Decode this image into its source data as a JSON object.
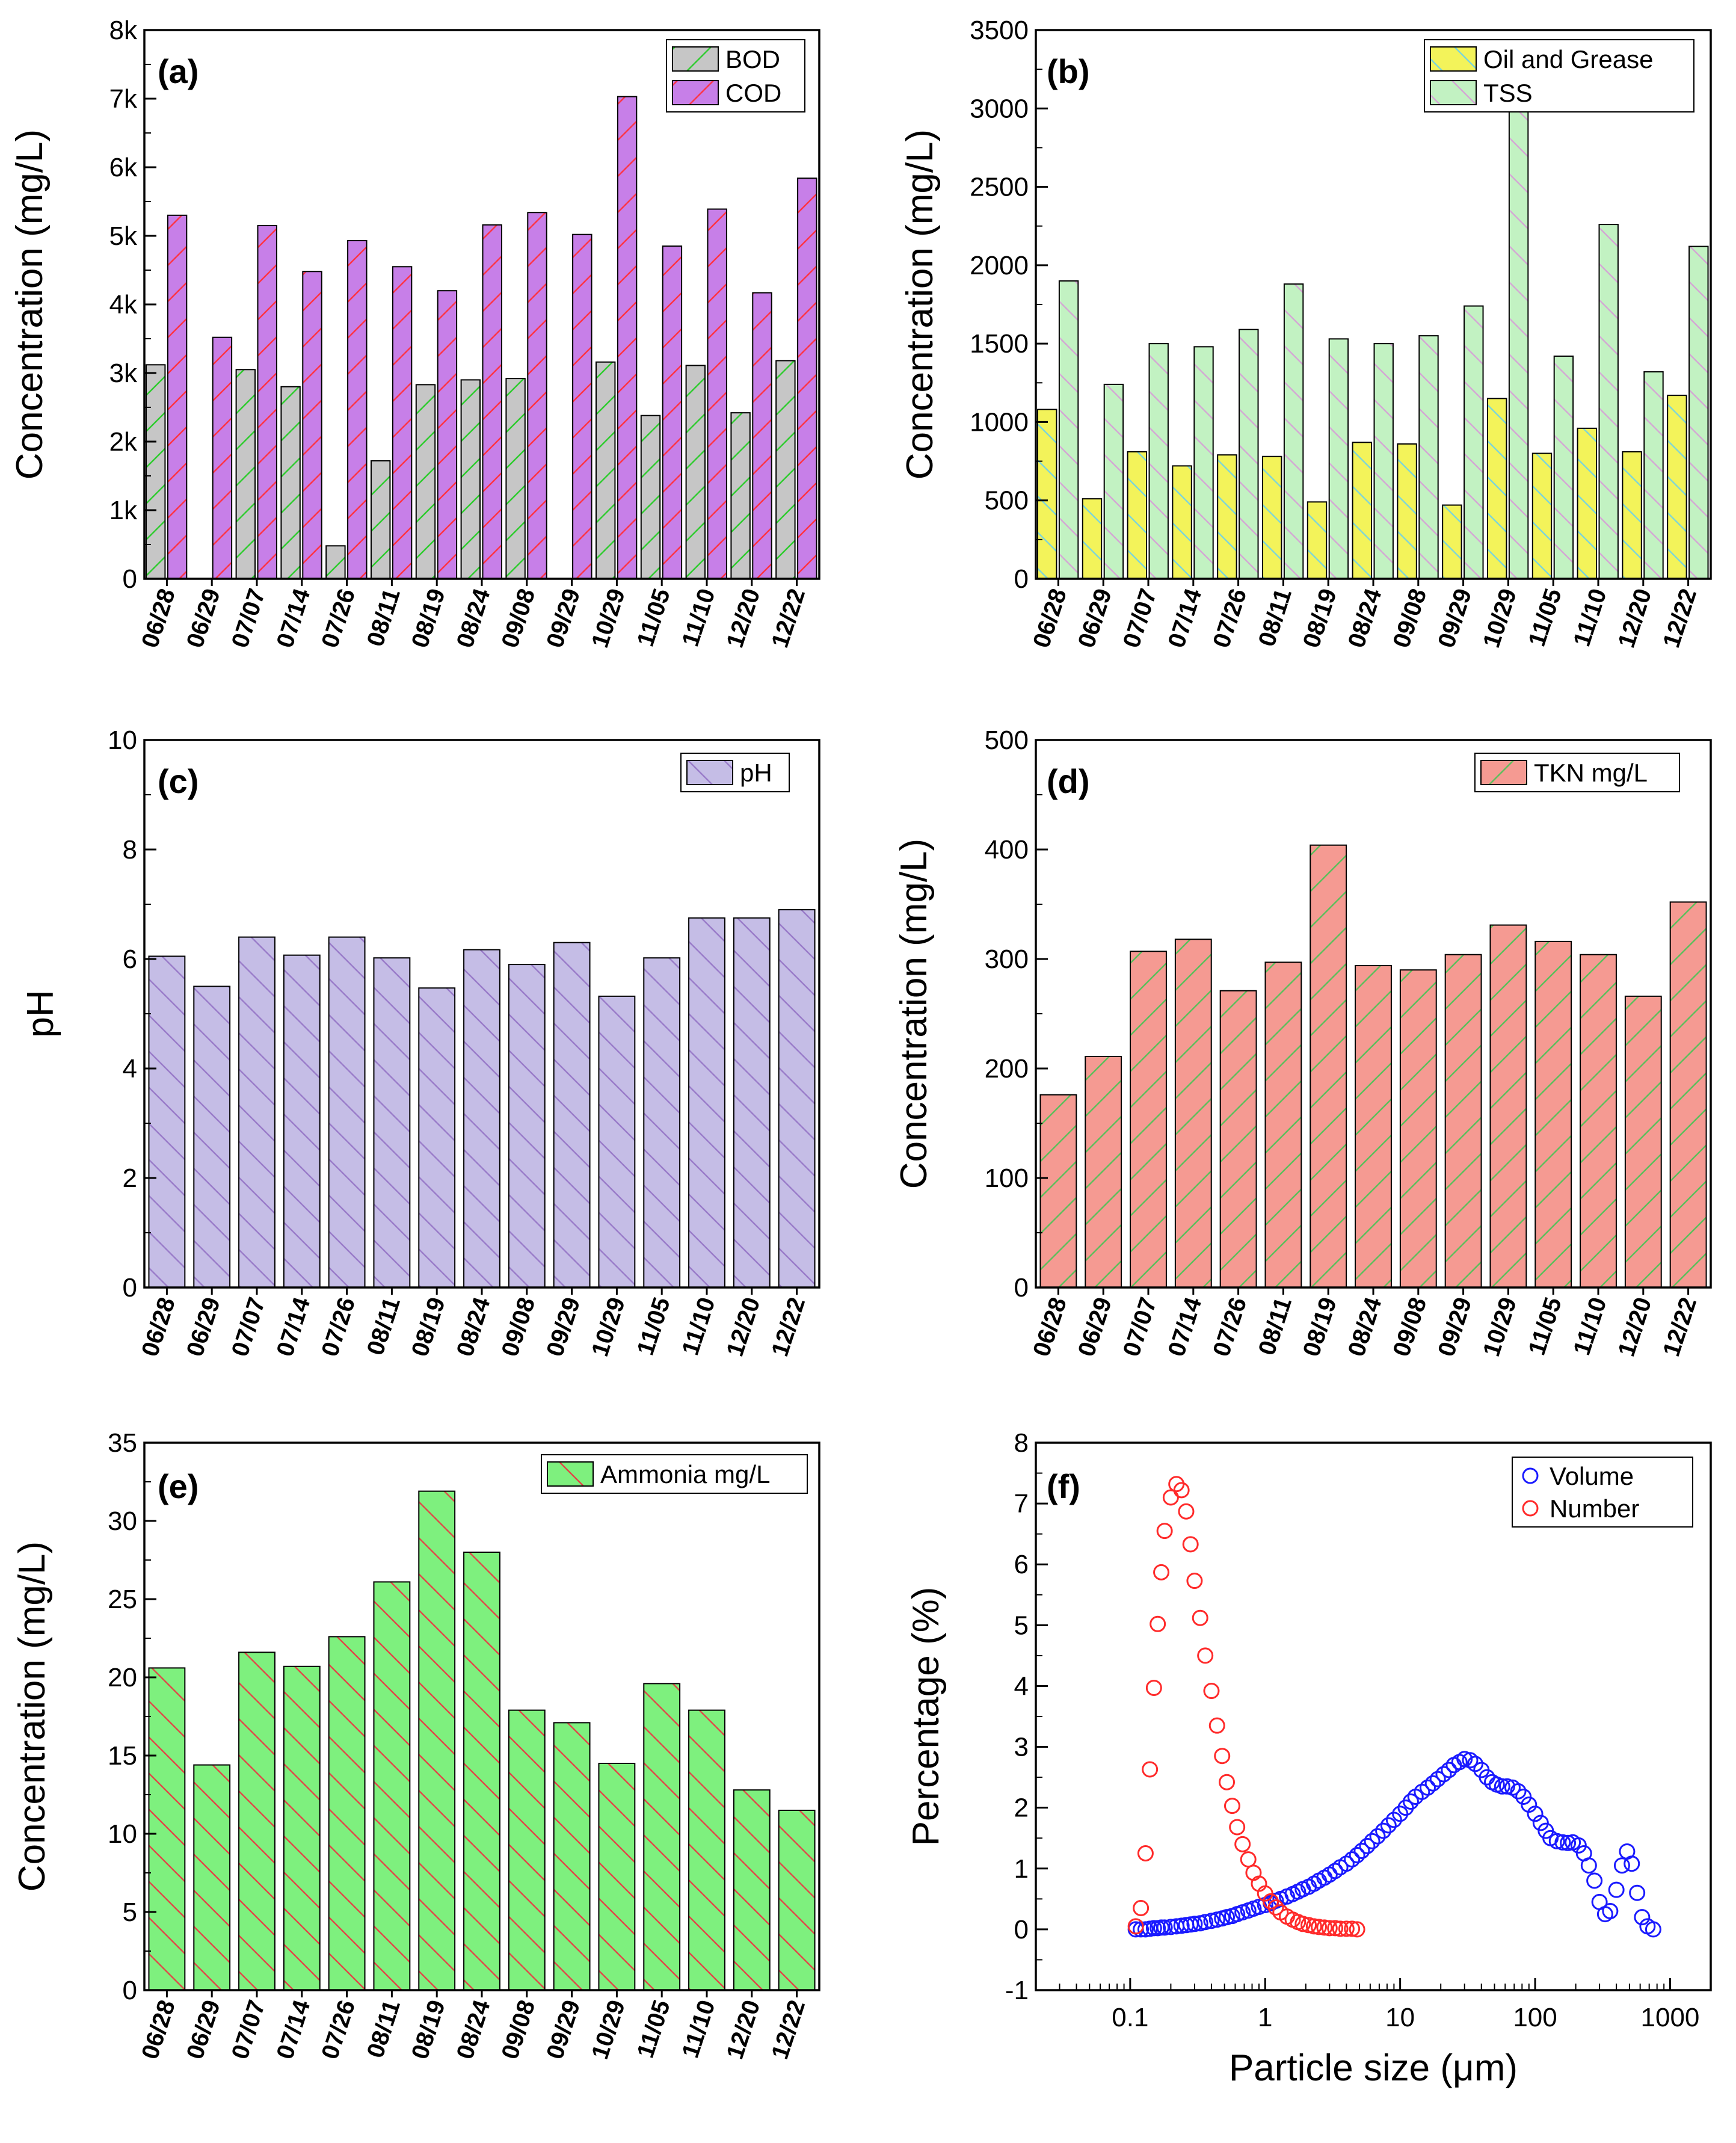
{
  "figure": {
    "categories": [
      "06/28",
      "06/29",
      "07/07",
      "07/14",
      "07/26",
      "08/11",
      "08/19",
      "08/24",
      "09/08",
      "09/29",
      "10/29",
      "11/05",
      "11/10",
      "12/20",
      "12/22"
    ]
  },
  "chart_data": [
    {
      "id": "a",
      "type": "bar",
      "label": "(a)",
      "ylabel": "Concentration (mg/L)",
      "ylim": [
        0,
        8000
      ],
      "yticks": [
        0,
        1000,
        2000,
        3000,
        4000,
        5000,
        6000,
        7000,
        8000
      ],
      "yticklabels": [
        "0",
        "1k",
        "2k",
        "3k",
        "4k",
        "5k",
        "6k",
        "7k",
        "8k"
      ],
      "series": [
        {
          "name": "BOD",
          "fill": "#c6c6c6",
          "hatch": "#2ecc2e",
          "hatch_dir": "up",
          "values": [
            3120,
            null,
            3050,
            2800,
            480,
            1720,
            2830,
            2900,
            2920,
            null,
            3160,
            2380,
            3110,
            2420,
            3180
          ]
        },
        {
          "name": "COD",
          "fill": "#c77fe8",
          "hatch": "#ff3344",
          "hatch_dir": "up",
          "values": [
            5300,
            3520,
            5150,
            4480,
            4930,
            4550,
            4200,
            5160,
            5340,
            5020,
            7030,
            4850,
            5390,
            4170,
            5840
          ]
        }
      ]
    },
    {
      "id": "b",
      "type": "bar",
      "label": "(b)",
      "ylabel": "Concentration (mg/L)",
      "ylim": [
        0,
        3500
      ],
      "yticks": [
        0,
        500,
        1000,
        1500,
        2000,
        2500,
        3000,
        3500
      ],
      "yticklabels": [
        "0",
        "500",
        "1000",
        "1500",
        "2000",
        "2500",
        "3000",
        "3500"
      ],
      "series": [
        {
          "name": "Oil and Grease",
          "fill": "#f3f35a",
          "hatch": "#7fd6d6",
          "hatch_dir": "down",
          "values": [
            1080,
            510,
            810,
            720,
            790,
            780,
            490,
            870,
            860,
            470,
            1150,
            800,
            960,
            810,
            1170
          ]
        },
        {
          "name": "TSS",
          "fill": "#c2f2c2",
          "hatch": "#d4a8d4",
          "hatch_dir": "down",
          "values": [
            1900,
            1240,
            1500,
            1480,
            1590,
            1880,
            1530,
            1500,
            1550,
            1740,
            3000,
            1420,
            2260,
            1320,
            2120
          ]
        }
      ]
    },
    {
      "id": "c",
      "type": "bar",
      "label": "(c)",
      "ylabel": "pH",
      "ylim": [
        0,
        10
      ],
      "yticks": [
        0,
        2,
        4,
        6,
        8,
        10
      ],
      "yticklabels": [
        "0",
        "2",
        "4",
        "6",
        "8",
        "10"
      ],
      "series": [
        {
          "name": "pH",
          "fill": "#c5bde6",
          "hatch": "#9a7cc9",
          "hatch_dir": "down",
          "values": [
            6.05,
            5.5,
            6.4,
            6.07,
            6.4,
            6.02,
            5.47,
            6.17,
            5.9,
            6.3,
            5.32,
            6.02,
            6.75,
            6.75,
            6.9
          ]
        }
      ]
    },
    {
      "id": "d",
      "type": "bar",
      "label": "(d)",
      "ylabel": "Concentration (mg/L)",
      "ylim": [
        0,
        500
      ],
      "yticks": [
        0,
        100,
        200,
        300,
        400,
        500
      ],
      "yticklabels": [
        "0",
        "100",
        "200",
        "300",
        "400",
        "500"
      ],
      "series": [
        {
          "name": "TKN mg/L",
          "fill": "#f59a92",
          "hatch": "#5bbf5b",
          "hatch_dir": "up",
          "values": [
            176,
            211,
            307,
            318,
            271,
            297,
            404,
            294,
            290,
            304,
            331,
            316,
            304,
            266,
            352
          ]
        }
      ]
    },
    {
      "id": "e",
      "type": "bar",
      "label": "(e)",
      "ylabel": "Concentration (mg/L)",
      "ylim": [
        0,
        35
      ],
      "yticks": [
        0,
        5,
        10,
        15,
        20,
        25,
        30,
        35
      ],
      "yticklabels": [
        "0",
        "5",
        "10",
        "15",
        "20",
        "25",
        "30",
        "35"
      ],
      "series": [
        {
          "name": "Ammonia mg/L",
          "fill": "#7ef07e",
          "hatch": "#e04848",
          "hatch_dir": "down",
          "values": [
            20.6,
            14.4,
            21.6,
            20.7,
            22.6,
            26.1,
            31.9,
            28.0,
            17.9,
            17.1,
            14.5,
            19.6,
            17.9,
            12.8,
            11.5
          ]
        }
      ]
    },
    {
      "id": "f",
      "type": "scatter",
      "label": "(f)",
      "xlabel": "Particle size (μm)",
      "ylabel": "Percentage (%)",
      "xscale": "log",
      "xlim": [
        0.02,
        2000
      ],
      "ylim": [
        -1,
        8
      ],
      "xticks": [
        0.1,
        1,
        10,
        100,
        1000
      ],
      "xticklabels": [
        "0.1",
        "1",
        "10",
        "100",
        "1000"
      ],
      "yticks": [
        -1,
        0,
        1,
        2,
        3,
        4,
        5,
        6,
        7,
        8
      ],
      "yticklabels": [
        "-1",
        "0",
        "1",
        "2",
        "3",
        "4",
        "5",
        "6",
        "7",
        "8"
      ],
      "series": [
        {
          "name": "Volume",
          "color": "#1a1aff",
          "x": [
            0.11,
            0.12,
            0.13,
            0.14,
            0.15,
            0.16,
            0.17,
            0.18,
            0.2,
            0.22,
            0.24,
            0.26,
            0.28,
            0.3,
            0.33,
            0.36,
            0.4,
            0.44,
            0.48,
            0.52,
            0.57,
            0.62,
            0.68,
            0.75,
            0.82,
            0.9,
            1.0,
            1.1,
            1.2,
            1.3,
            1.45,
            1.6,
            1.75,
            1.9,
            2.1,
            2.3,
            2.5,
            2.75,
            3.0,
            3.3,
            3.6,
            4.0,
            4.4,
            4.8,
            5.2,
            5.7,
            6.2,
            6.8,
            7.5,
            8.2,
            9.0,
            10,
            11,
            12,
            13,
            14.5,
            16,
            17.5,
            19,
            21,
            23,
            25,
            27.5,
            30,
            33,
            36,
            40,
            44,
            48,
            52,
            57,
            62,
            68,
            75,
            82,
            90,
            100,
            110,
            120,
            130,
            145,
            160,
            175,
            190,
            210,
            230,
            250,
            275,
            300,
            330,
            360,
            400,
            440,
            480,
            520,
            570,
            620,
            680,
            750
          ],
          "y": [
            0.0,
            0.0,
            0.0,
            0.01,
            0.02,
            0.02,
            0.03,
            0.03,
            0.04,
            0.05,
            0.06,
            0.07,
            0.08,
            0.09,
            0.1,
            0.12,
            0.14,
            0.16,
            0.18,
            0.2,
            0.22,
            0.25,
            0.28,
            0.31,
            0.34,
            0.37,
            0.4,
            0.43,
            0.47,
            0.5,
            0.54,
            0.58,
            0.62,
            0.66,
            0.7,
            0.75,
            0.8,
            0.85,
            0.9,
            0.96,
            1.02,
            1.08,
            1.15,
            1.22,
            1.29,
            1.37,
            1.45,
            1.53,
            1.62,
            1.71,
            1.8,
            1.9,
            2.0,
            2.1,
            2.18,
            2.26,
            2.33,
            2.4,
            2.47,
            2.55,
            2.62,
            2.7,
            2.75,
            2.8,
            2.78,
            2.72,
            2.62,
            2.5,
            2.42,
            2.38,
            2.35,
            2.35,
            2.33,
            2.27,
            2.18,
            2.05,
            1.9,
            1.75,
            1.62,
            1.5,
            1.45,
            1.43,
            1.42,
            1.43,
            1.38,
            1.25,
            1.05,
            0.8,
            0.45,
            0.25,
            0.3,
            0.65,
            1.05,
            1.28,
            1.08,
            0.6,
            0.2,
            0.05,
            0.0
          ]
        },
        {
          "name": "Number",
          "color": "#ff2a2a",
          "x": [
            0.11,
            0.12,
            0.13,
            0.14,
            0.15,
            0.16,
            0.17,
            0.18,
            0.2,
            0.22,
            0.24,
            0.26,
            0.28,
            0.3,
            0.33,
            0.36,
            0.4,
            0.44,
            0.48,
            0.52,
            0.57,
            0.62,
            0.68,
            0.75,
            0.82,
            0.9,
            1.0,
            1.1,
            1.2,
            1.3,
            1.45,
            1.6,
            1.75,
            1.9,
            2.1,
            2.3,
            2.5,
            2.75,
            3.0,
            3.3,
            3.6,
            4.0,
            4.4,
            4.8
          ],
          "y": [
            0.05,
            0.35,
            1.25,
            2.63,
            3.97,
            5.02,
            5.87,
            6.55,
            7.1,
            7.32,
            7.22,
            6.87,
            6.33,
            5.73,
            5.12,
            4.5,
            3.92,
            3.35,
            2.85,
            2.42,
            2.03,
            1.68,
            1.4,
            1.15,
            0.93,
            0.75,
            0.59,
            0.46,
            0.36,
            0.28,
            0.21,
            0.16,
            0.12,
            0.09,
            0.07,
            0.05,
            0.04,
            0.03,
            0.02,
            0.02,
            0.01,
            0.01,
            0.01,
            0.0
          ]
        }
      ]
    }
  ]
}
